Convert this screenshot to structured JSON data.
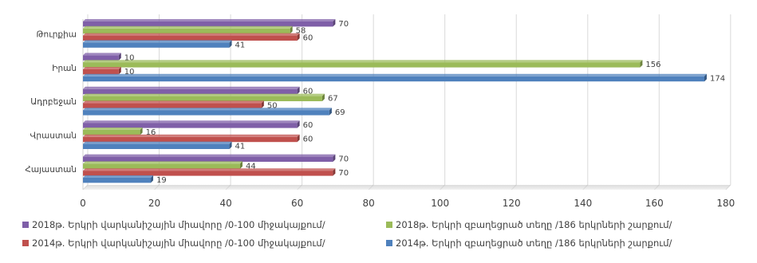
{
  "chart_data": {
    "type": "bar",
    "orientation": "horizontal",
    "categories": [
      "Թուրքիա",
      "Իրան",
      "Ադրբեջան",
      "Վրաստան",
      "Հայաստան"
    ],
    "series": [
      {
        "name": "2018թ.  Երկրի վարկանիշային միավորը /0-100 միջակայքում/",
        "color": "#7F5FA8",
        "values": [
          70,
          10,
          60,
          60,
          70
        ]
      },
      {
        "name": "2018թ. Երկրի զբաղեցրած տեղը   /186 երկրների շարքում/",
        "color": "#9BBB59",
        "values": [
          58,
          156,
          67,
          16,
          44
        ]
      },
      {
        "name": "2014թ.  Երկրի վարկանիշային միավորը /0-100 միջակայքում/",
        "color": "#C0504D",
        "values": [
          60,
          10,
          50,
          60,
          70
        ]
      },
      {
        "name": "2014թ. Երկրի զբաղեցրած տեղը   /186 երկրների շարքում/",
        "color": "#4F81BD",
        "values": [
          41,
          174,
          69,
          41,
          19
        ]
      }
    ],
    "x_ticks": [
      0,
      20,
      40,
      60,
      80,
      100,
      120,
      140,
      160,
      180
    ],
    "xlim": [
      0,
      180
    ],
    "grid": true,
    "legend_position": "bottom",
    "title": "",
    "xlabel": "",
    "ylabel": ""
  }
}
